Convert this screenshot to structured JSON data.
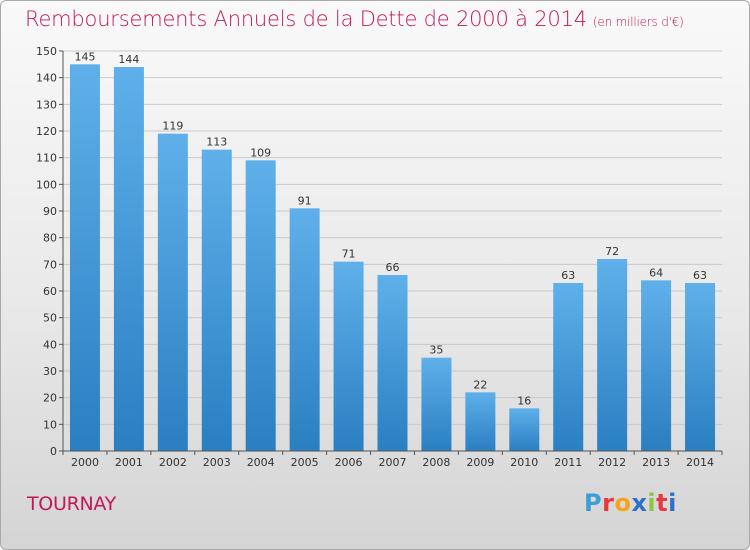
{
  "header": {
    "title": "Remboursements Annuels de la Dette de 2000 à 2014",
    "unit": "(en milliers d'€)"
  },
  "footer": {
    "commune": "TOURNAY",
    "brand": [
      {
        "ch": "P",
        "color": "#3a9fd6"
      },
      {
        "ch": "r",
        "color": "#e8383d"
      },
      {
        "ch": "o",
        "color": "#f6a21a"
      },
      {
        "ch": "x",
        "color": "#2c70c9"
      },
      {
        "ch": "i",
        "color": "#8dc63f"
      },
      {
        "ch": "t",
        "color": "#e8383d"
      },
      {
        "ch": "i",
        "color": "#2c70c9"
      }
    ]
  },
  "chart_data": {
    "type": "bar",
    "title": "Remboursements Annuels de la Dette de 2000 à 2014",
    "subtitle": "(en milliers d'€)",
    "categories": [
      "2000",
      "2001",
      "2002",
      "2003",
      "2004",
      "2005",
      "2006",
      "2007",
      "2008",
      "2009",
      "2010",
      "2011",
      "2012",
      "2013",
      "2014"
    ],
    "values": [
      145,
      144,
      119,
      113,
      109,
      91,
      71,
      66,
      35,
      22,
      16,
      63,
      72,
      64,
      63
    ],
    "ylim": [
      0,
      150
    ],
    "yticks": [
      0,
      10,
      20,
      30,
      40,
      50,
      60,
      70,
      80,
      90,
      100,
      110,
      120,
      130,
      140,
      150
    ],
    "grid": true,
    "bar_color_top": "#5fb0ea",
    "bar_color_bottom": "#2a7fc1"
  }
}
